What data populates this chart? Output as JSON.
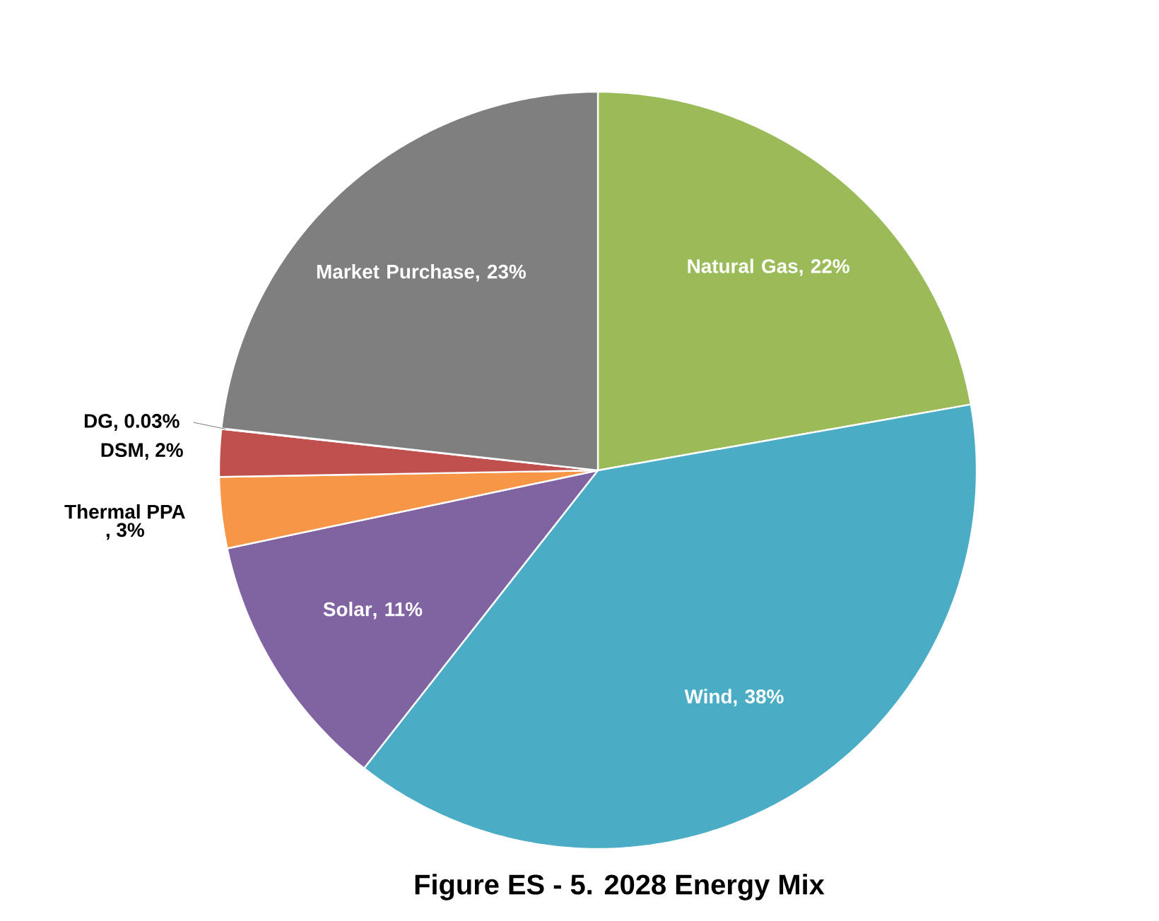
{
  "chart_data": {
    "type": "pie",
    "title": "Figure ES - 5. 2028 Energy Mix",
    "categories": [
      "Natural Gas",
      "Wind",
      "Solar",
      "Thermal PPA",
      "DSM",
      "DG",
      "Market Purchase"
    ],
    "values": [
      22,
      38,
      11,
      3,
      2,
      0.03,
      23
    ],
    "value_labels": [
      ", 22%",
      ", 38%",
      ", 11%",
      ", 3%",
      ", 2%",
      ", 0.03%",
      ", 23%"
    ],
    "colors": [
      "#9bbb59",
      "#4bacc6",
      "#8064a2",
      "#f79646",
      "#c0504d",
      "#4f81bd",
      "#7f7f7f"
    ]
  }
}
